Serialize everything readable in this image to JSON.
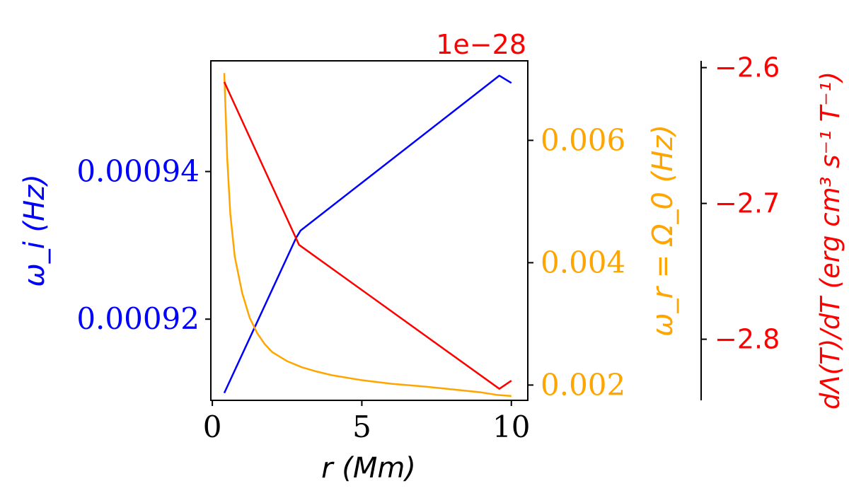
{
  "chart_data": {
    "type": "line",
    "x_axis": {
      "label": "r (Mm)",
      "range": [
        -0.05,
        10.55
      ],
      "ticks": [
        0,
        5,
        10
      ],
      "tick_labels": [
        "0",
        "5",
        "10"
      ]
    },
    "y_axes": [
      {
        "id": "omega_i",
        "label": "ω_i (Hz)",
        "color": "#0000ff",
        "position": "left",
        "range": [
          0.000909,
          0.000955
        ],
        "ticks": [
          0.00092,
          0.00094
        ],
        "tick_labels": [
          "0.00092",
          "0.00094"
        ]
      },
      {
        "id": "omega_r",
        "label": "ω_r = Ω_0 (Hz)",
        "color": "#ffa500",
        "position": "right",
        "range": [
          0.00175,
          0.0073
        ],
        "ticks": [
          0.002,
          0.004,
          0.006
        ],
        "tick_labels": [
          "0.002",
          "0.004",
          "0.006"
        ]
      },
      {
        "id": "dlambda",
        "label": "dΛ(T)/dT (erg cm³ s⁻¹ T⁻¹)",
        "color": "#ff0000",
        "position": "far-right",
        "offset_label": "1e−28",
        "range": [
          -2.845,
          -2.595
        ],
        "ticks": [
          -2.6,
          -2.7,
          -2.8
        ],
        "tick_labels": [
          "−2.6",
          "−2.7",
          "−2.8"
        ]
      }
    ],
    "series": [
      {
        "axis": "omega_i",
        "color": "#0000ff",
        "x": [
          0.4,
          2.8,
          2.95,
          9.6,
          10
        ],
        "y": [
          0.00091,
          0.000931,
          0.000932,
          0.000953,
          0.000952
        ]
      },
      {
        "axis": "omega_r",
        "color": "#ffa500",
        "x": [
          0.4,
          0.5,
          0.6,
          0.75,
          1.0,
          1.25,
          1.5,
          1.75,
          2.0,
          2.5,
          3.0,
          3.5,
          4.0,
          5.0,
          6.0,
          7.0,
          8.0,
          9.0,
          9.5,
          10.0
        ],
        "y": [
          0.0071,
          0.0057,
          0.0048,
          0.0041,
          0.0035,
          0.0031,
          0.00285,
          0.00267,
          0.00254,
          0.00239,
          0.00229,
          0.00222,
          0.00216,
          0.00208,
          0.00202,
          0.00198,
          0.00193,
          0.00188,
          0.00184,
          0.00182
        ]
      },
      {
        "axis": "dlambda",
        "color": "#ff0000",
        "x": [
          0.4,
          2.9,
          9.6,
          10
        ],
        "y": [
          -2.6105,
          -2.7305,
          -2.8365,
          -2.8305
        ]
      }
    ]
  }
}
